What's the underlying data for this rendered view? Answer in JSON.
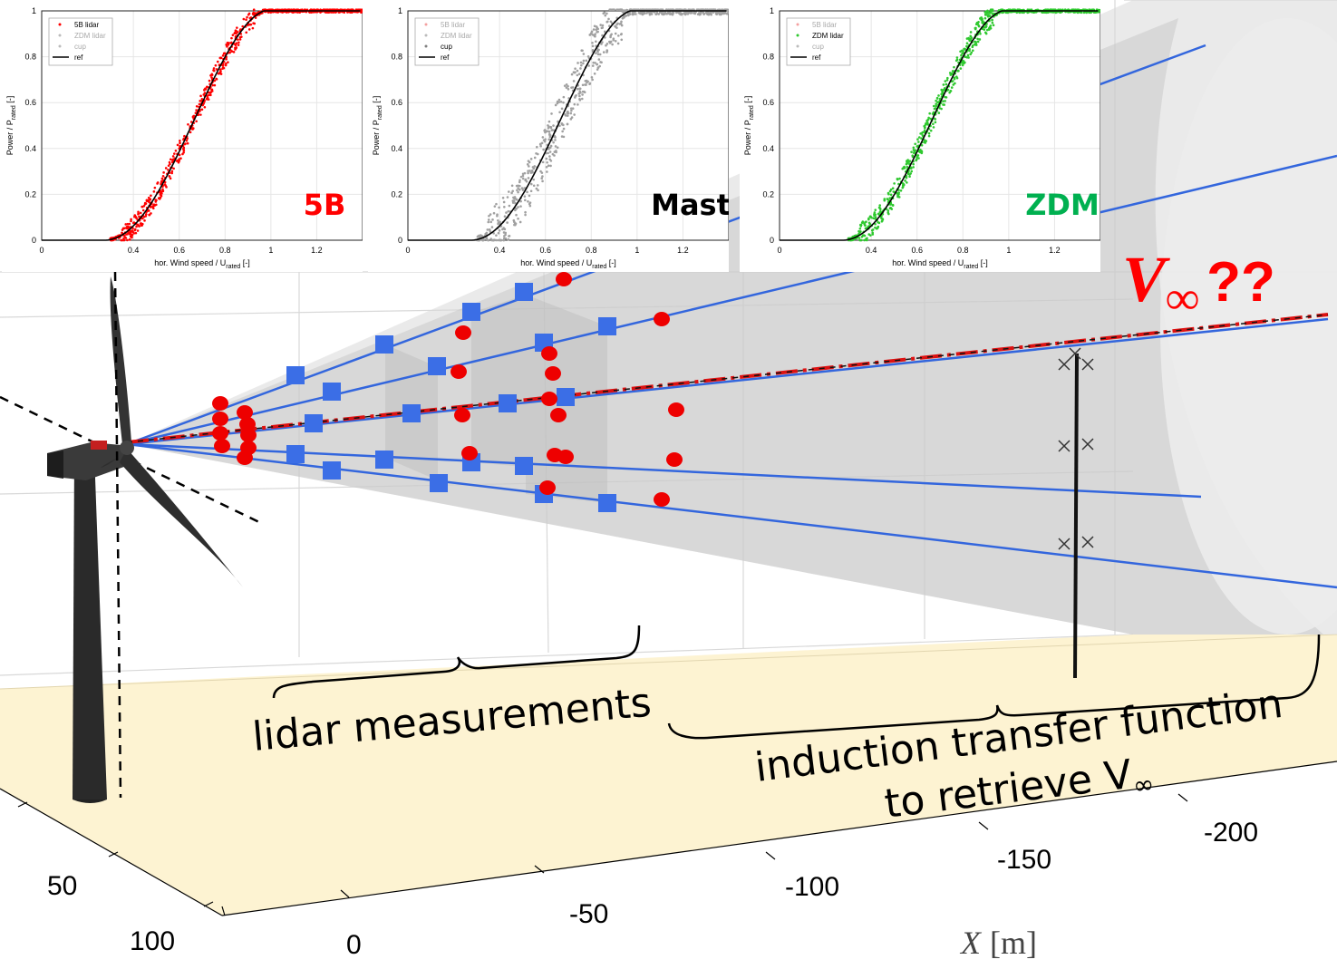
{
  "insets": [
    {
      "id": "5b",
      "badge": "5B",
      "badge_color": "#ff0000",
      "scatter_color": "#ff0000",
      "legend": [
        "5B lidar",
        "ZDM lidar",
        "cup",
        "ref"
      ],
      "legend_active": [
        true,
        false,
        false,
        true
      ],
      "legend_colors": [
        "#ff0000",
        "#bbbbbb",
        "#bbbbbb",
        "#000000"
      ],
      "ylabel": "Power / P",
      "ylabel_sub": "rated",
      "ylabel_unit": " [-]",
      "xlabel": "hor. Wind speed / U",
      "xlabel_sub": "rated",
      "xlabel_unit": " [-]",
      "scatter_spread": 0.045
    },
    {
      "id": "mast",
      "badge": "Mast",
      "badge_color": "#000000",
      "scatter_color": "#a0a0a0",
      "legend": [
        "5B lidar",
        "ZDM lidar",
        "cup",
        "ref"
      ],
      "legend_active": [
        false,
        false,
        true,
        true
      ],
      "legend_colors": [
        "#f4a0a0",
        "#bbbbbb",
        "#808080",
        "#000000"
      ],
      "ylabel": "Power / P",
      "ylabel_sub": "rated",
      "ylabel_unit": " [-]",
      "xlabel": "hor. Wind speed / U",
      "xlabel_sub": "rated",
      "xlabel_unit": " [-]",
      "scatter_spread": 0.11
    },
    {
      "id": "zdm",
      "badge": "ZDM",
      "badge_color": "#00b050",
      "scatter_color": "#2ec82e",
      "legend": [
        "5B lidar",
        "ZDM lidar",
        "cup",
        "ref"
      ],
      "legend_active": [
        false,
        true,
        false,
        true
      ],
      "legend_colors": [
        "#f4a0a0",
        "#2ec82e",
        "#bbbbbb",
        "#000000"
      ],
      "ylabel": "Power / P",
      "ylabel_sub": "rated",
      "ylabel_unit": " [-]",
      "xlabel": "hor. Wind speed / U",
      "xlabel_sub": "rated",
      "xlabel_unit": " [-]",
      "scatter_spread": 0.05
    }
  ],
  "chart_axes": {
    "x_ticks": [
      "0",
      "0.4",
      "0.6",
      "0.8",
      "1",
      "1.2"
    ],
    "y_ticks": [
      "0",
      "0.2",
      "0.4",
      "0.6",
      "0.8",
      "1"
    ]
  },
  "scene": {
    "v_inf_label": "V",
    "v_inf_sub": "∞",
    "v_inf_suffix": "??",
    "v_inf_color": "#ff0000",
    "lidar_label": "lidar measurements",
    "induction_line1": "induction transfer function",
    "induction_line2": "to retrieve V",
    "induction_sub": "∞",
    "x_axis_ticks": [
      "0",
      "-50",
      "-100",
      "-150",
      "-200"
    ],
    "y_axis_ticks": [
      "50",
      "100"
    ],
    "x_axis_label": "X",
    "x_axis_unit": "[m]",
    "beam_color": "#3366dd",
    "marker_square_color": "#3b6ee6",
    "marker_circle_color": "#ee0000",
    "ground_color": "#fdf3d2"
  }
}
